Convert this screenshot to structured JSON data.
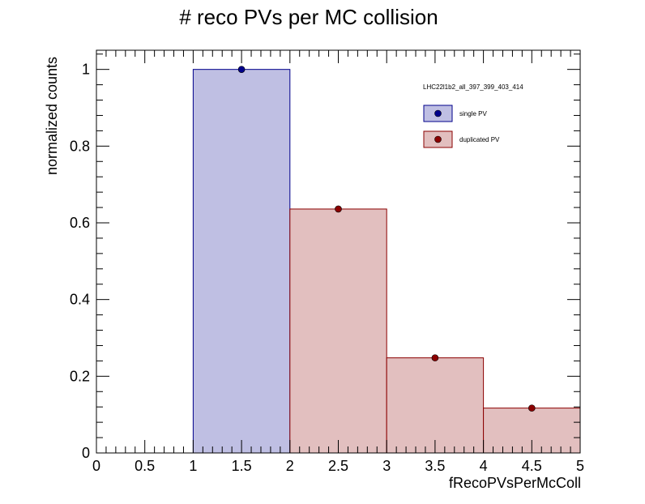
{
  "chart_data": {
    "type": "bar",
    "title": "# reco PVs per MC collision",
    "xlabel": "fRecoPVsPerMcColl",
    "ylabel": "normalized counts",
    "xlim": [
      0,
      5
    ],
    "ylim": [
      0,
      1.05
    ],
    "x_ticks": [
      "0",
      "0.5",
      "1",
      "1.5",
      "2",
      "2.5",
      "3",
      "3.5",
      "4",
      "4.5",
      "5"
    ],
    "y_ticks": [
      "0",
      "0.2",
      "0.4",
      "0.6",
      "0.8",
      "1"
    ],
    "legend": {
      "header": "LHC22l1b2_all_397_399_403_414",
      "placement": "top-right"
    },
    "series": [
      {
        "name": "single PV",
        "color": "#00008b",
        "fill": "#bfbfe3",
        "bins": [
          {
            "low": 1,
            "high": 2,
            "value": 1.0
          }
        ],
        "points": [
          {
            "x": 1.5,
            "y": 1.0
          }
        ]
      },
      {
        "name": "duplicated PV",
        "color": "#8b0000",
        "fill": "#e2bfbf",
        "bins": [
          {
            "low": 2,
            "high": 3,
            "value": 0.636
          },
          {
            "low": 3,
            "high": 4,
            "value": 0.248
          },
          {
            "low": 4,
            "high": 5,
            "value": 0.117
          }
        ],
        "points": [
          {
            "x": 2.5,
            "y": 0.636
          },
          {
            "x": 3.5,
            "y": 0.248
          },
          {
            "x": 4.5,
            "y": 0.117
          }
        ]
      }
    ]
  }
}
